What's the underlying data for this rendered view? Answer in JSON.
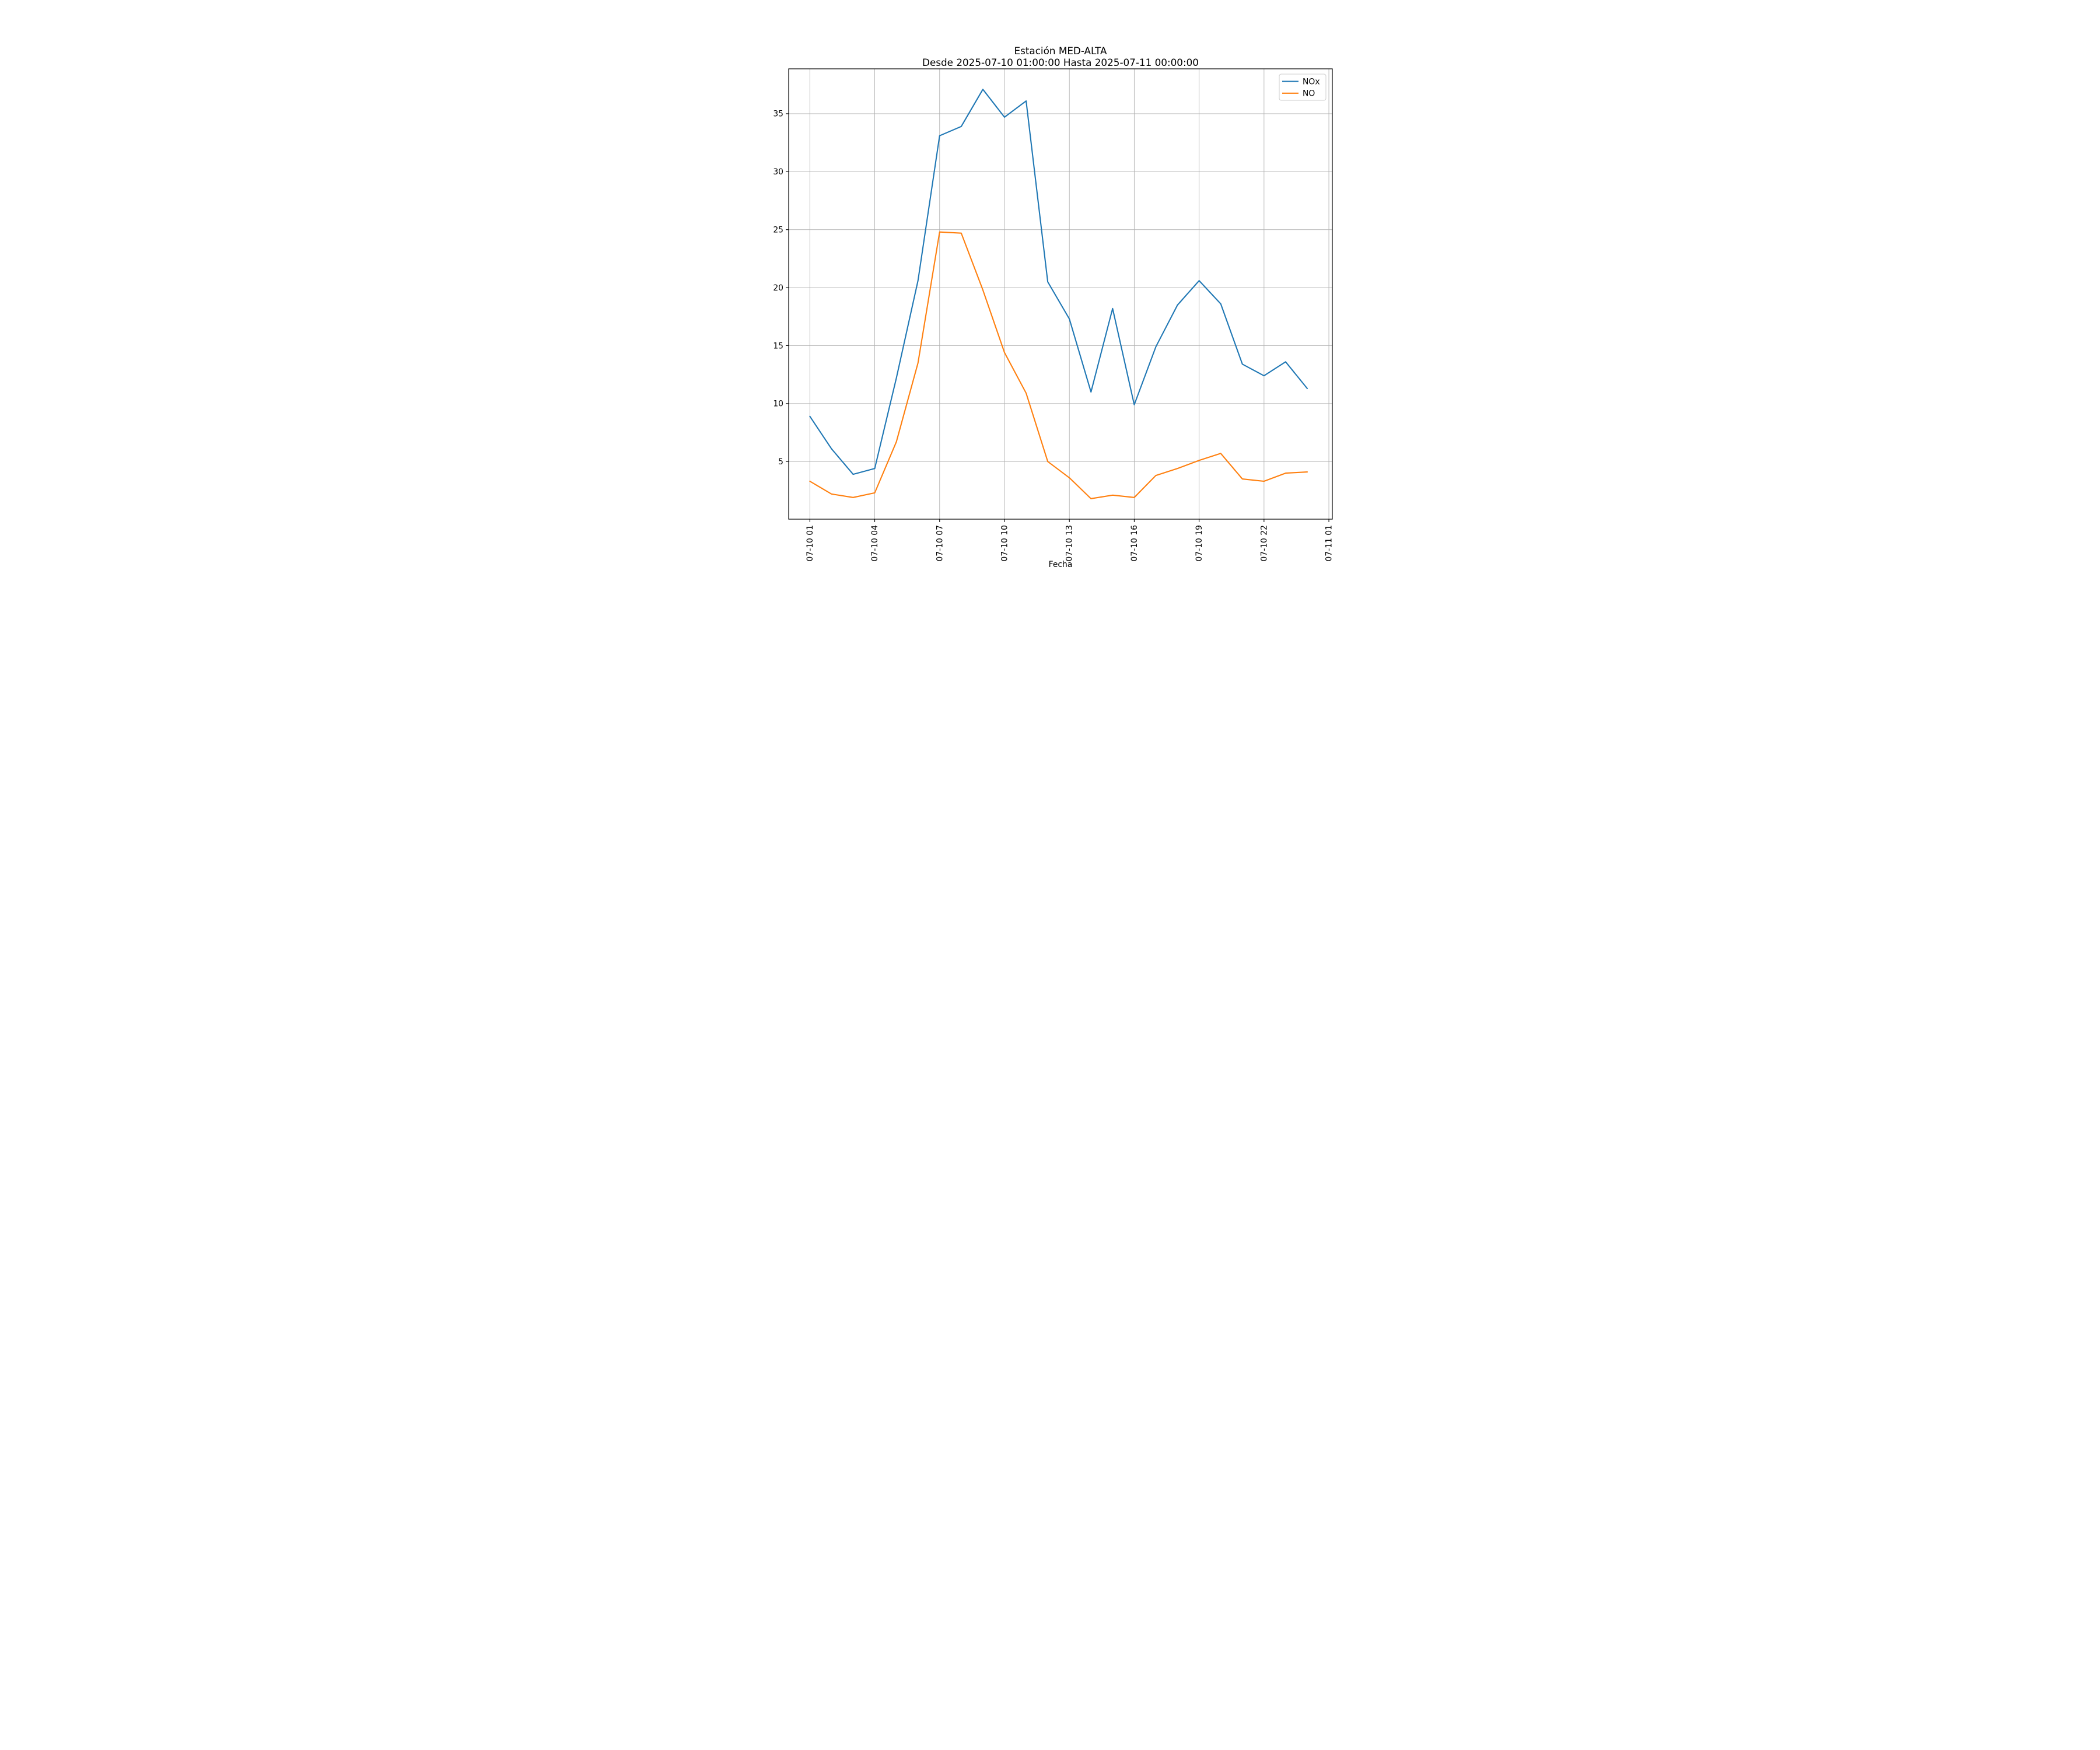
{
  "figure": {
    "background": "#ffffff"
  },
  "chart_data": {
    "type": "line",
    "title": "Estación MED-ALTA",
    "subtitle": "Desde 2025-07-10 01:00:00 Hasta 2025-07-11 00:00:00",
    "xlabel": "Fecha",
    "ylabel": "",
    "grid": true,
    "legend": {
      "position": "upper right",
      "entries": [
        "NOx",
        "NO"
      ]
    },
    "colors": {
      "nox": "#1f77b4",
      "no": "#ff7f0e",
      "grid": "#b0b0b0",
      "axes": "#000000",
      "legend_border": "#cccccc",
      "text": "#000000"
    },
    "x_hours": [
      1,
      2,
      3,
      4,
      5,
      6,
      7,
      8,
      9,
      10,
      11,
      12,
      13,
      14,
      15,
      16,
      17,
      18,
      19,
      20,
      21,
      22,
      23,
      24
    ],
    "x_tick_hours": [
      1,
      4,
      7,
      10,
      13,
      16,
      19,
      22,
      25
    ],
    "x_tick_labels": [
      "07-10 01",
      "07-10 04",
      "07-10 07",
      "07-10 10",
      "07-10 13",
      "07-10 16",
      "07-10 19",
      "07-10 22",
      "07-11 01"
    ],
    "y_ticks": [
      5,
      10,
      15,
      20,
      25,
      30,
      35
    ],
    "xlim": [
      0.02,
      25.16
    ],
    "ylim": [
      0.03,
      38.87
    ],
    "series": [
      {
        "name": "NOx",
        "color": "#1f77b4",
        "values": [
          8.9,
          6.1,
          3.9,
          4.4,
          12.2,
          20.6,
          33.1,
          33.9,
          37.1,
          34.7,
          36.1,
          20.5,
          17.3,
          11.0,
          18.2,
          9.9,
          14.9,
          18.5,
          20.6,
          18.6,
          13.4,
          12.4,
          13.6,
          11.3
        ]
      },
      {
        "name": "NO",
        "color": "#ff7f0e",
        "values": [
          3.3,
          2.2,
          1.9,
          2.3,
          6.7,
          13.5,
          24.8,
          24.7,
          19.8,
          14.4,
          10.9,
          5.0,
          3.6,
          1.8,
          2.1,
          1.9,
          3.8,
          4.4,
          5.1,
          5.7,
          3.5,
          3.3,
          4.0,
          4.1
        ]
      }
    ]
  }
}
